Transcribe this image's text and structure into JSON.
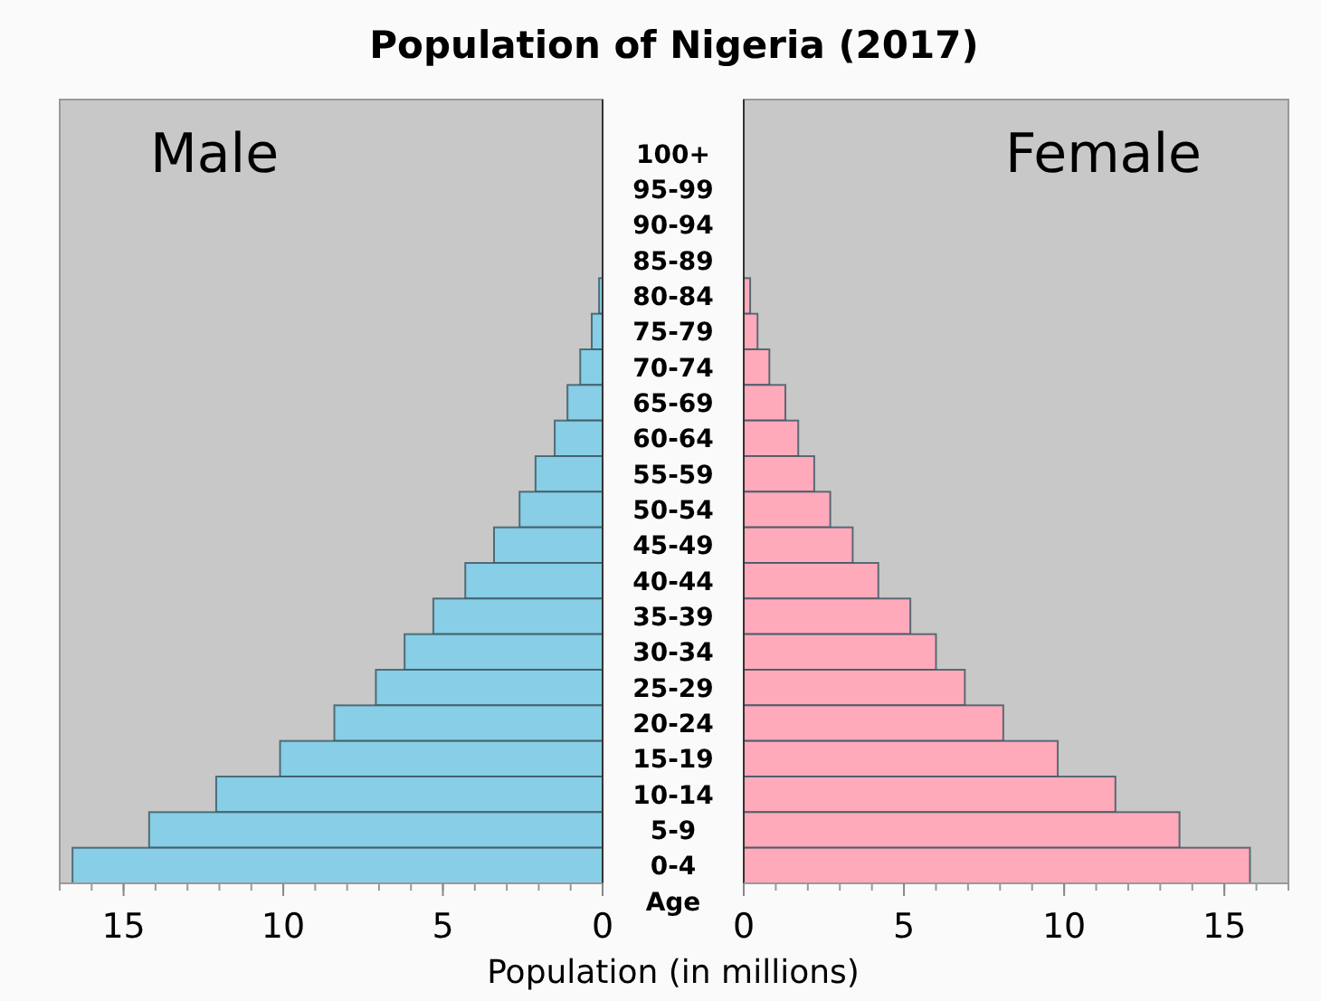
{
  "chart_data": [
    {
      "type": "bar",
      "orientation": "horizontal",
      "title": "Population of Nigeria (2017)",
      "xlabel": "Population (in millions)",
      "ylabel": "Age",
      "categories": [
        "100+",
        "95-99",
        "90-94",
        "85-89",
        "80-84",
        "75-79",
        "70-74",
        "65-69",
        "60-64",
        "55-59",
        "50-54",
        "45-49",
        "40-44",
        "35-39",
        "30-34",
        "25-29",
        "20-24",
        "15-19",
        "10-14",
        "5-9",
        "0-4"
      ],
      "series": [
        {
          "name": "Male",
          "color": "#87cee6",
          "values": [
            0,
            0,
            null,
            null,
            0.11,
            0.34,
            0.7,
            1.1,
            1.5,
            2.1,
            2.6,
            3.4,
            4.3,
            5.3,
            6.2,
            7.1,
            8.4,
            10.1,
            12.1,
            14.2,
            16.6
          ]
        }
      ],
      "xlim": [
        17,
        0
      ],
      "xticks": [
        15,
        10,
        5,
        0
      ],
      "legend": "top left"
    },
    {
      "type": "bar",
      "orientation": "horizontal",
      "categories": [
        "100+",
        "95-99",
        "90-94",
        "85-89",
        "80-84",
        "75-79",
        "70-74",
        "65-69",
        "60-64",
        "55-59",
        "50-54",
        "45-49",
        "40-44",
        "35-39",
        "30-34",
        "25-29",
        "20-24",
        "15-19",
        "10-14",
        "5-9",
        "0-4"
      ],
      "series": [
        {
          "name": "Female",
          "color": "#ffaabb",
          "values": [
            0,
            0,
            null,
            null,
            0.2,
            0.43,
            0.8,
            1.3,
            1.7,
            2.2,
            2.7,
            3.4,
            4.2,
            5.2,
            6.0,
            6.9,
            8.1,
            9.8,
            11.6,
            13.6,
            15.8
          ]
        }
      ],
      "xlim": [
        0,
        17
      ],
      "xticks": [
        0,
        5,
        10,
        15
      ],
      "legend": "top right",
      "tick_labels": "x"
    }
  ]
}
